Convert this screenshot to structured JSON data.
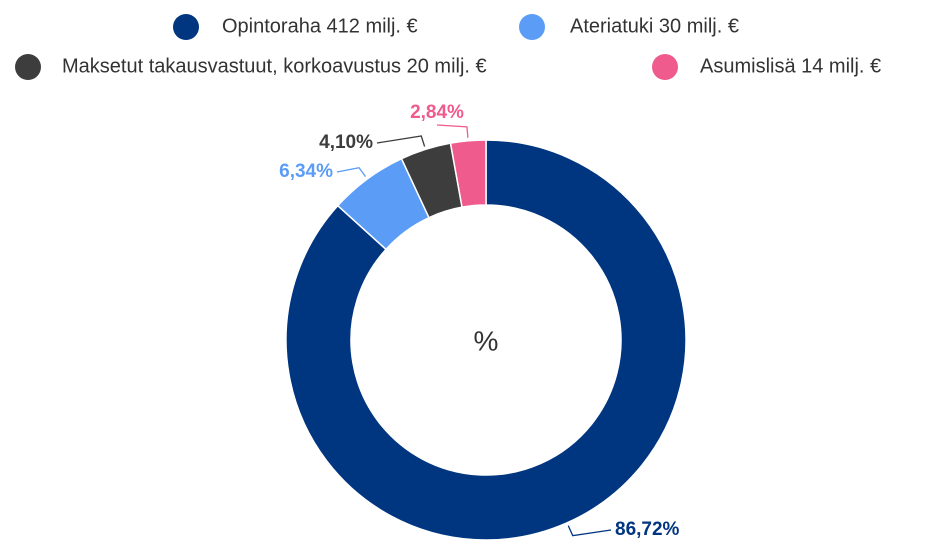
{
  "chart_data": {
    "type": "donut",
    "categories": [
      "Opintoraha 412 milj. €",
      "Ateriatuki 30 milj. €",
      "Maksetut takausvastuut, korkoavustus 20 milj. €",
      "Asumislisä 14 milj. €"
    ],
    "values": [
      86.72,
      6.34,
      4.1,
      2.84
    ],
    "value_labels": [
      "86,72%",
      "6,34%",
      "4,10%",
      "2,84%"
    ],
    "colors": [
      "#003580",
      "#5b9cf6",
      "#3d3d3d",
      "#ef5b8d"
    ],
    "center_label": "%"
  }
}
